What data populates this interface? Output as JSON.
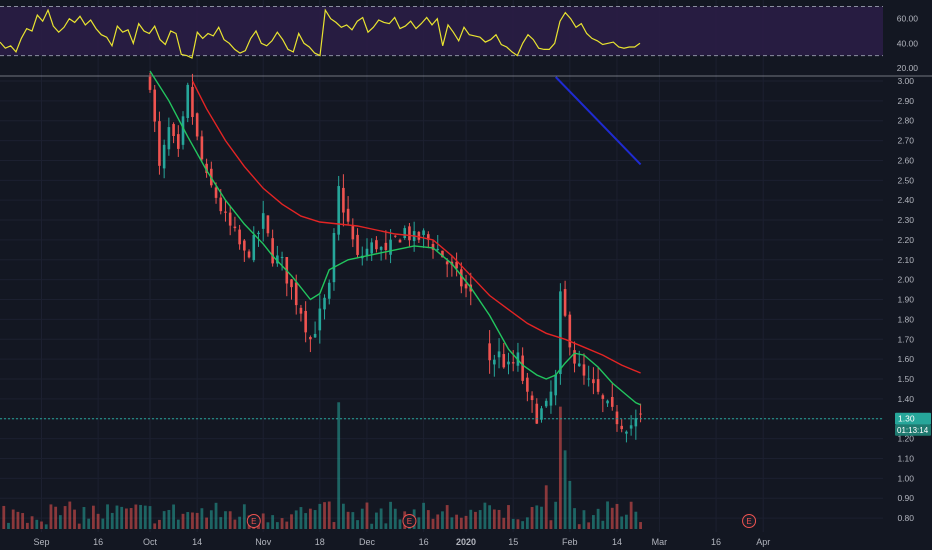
{
  "colors": {
    "background": "#131722",
    "rsi_band": "#2a1d45",
    "rsi_line": "#e8e330",
    "up": "#26a69a",
    "down": "#ef5350",
    "ma_fast": "#22c55e",
    "ma_slow": "#e32424",
    "trend": "#1f2bd1",
    "price_label_bg": "#26a69a",
    "axis_text": "#b2b5be"
  },
  "chart_data": [
    {
      "type": "line",
      "panel": "rsi",
      "ylim": [
        15,
        72
      ],
      "band": [
        30,
        70
      ],
      "tick_labels": [
        "60.00",
        "40.00",
        "20.00"
      ],
      "tick_values": [
        60,
        40,
        20
      ],
      "x_day_range": [
        0,
        140
      ],
      "values": [
        41,
        36,
        38,
        33,
        44,
        52,
        50,
        63,
        58,
        67,
        54,
        49,
        53,
        60,
        57,
        62,
        55,
        59,
        52,
        47,
        45,
        38,
        54,
        49,
        51,
        40,
        56,
        50,
        48,
        54,
        43,
        39,
        50,
        48,
        31,
        30,
        28,
        49,
        44,
        48,
        46,
        53,
        43,
        40,
        35,
        32,
        34,
        44,
        50,
        40,
        38,
        42,
        49,
        43,
        35,
        33,
        48,
        40,
        37,
        32,
        30,
        67,
        60,
        57,
        53,
        55,
        51,
        58,
        61,
        49,
        53,
        59,
        57,
        56,
        61,
        52,
        54,
        58,
        52,
        56,
        61,
        55,
        60,
        38,
        55,
        49,
        42,
        53,
        47,
        46,
        45,
        41,
        43,
        47,
        39,
        37,
        33,
        30,
        40,
        47,
        43,
        36,
        35,
        35,
        40,
        58,
        65,
        60,
        53,
        56,
        48,
        44,
        42,
        39,
        40,
        41,
        37,
        36,
        37,
        37,
        40
      ]
    },
    {
      "type": "candlestick",
      "panel": "price",
      "ylim": [
        0.75,
        3.02
      ],
      "tick_labels": [
        "3.00",
        "2.90",
        "2.80",
        "2.70",
        "2.60",
        "2.50",
        "2.40",
        "2.30",
        "2.20",
        "2.10",
        "2.00",
        "1.90",
        "1.80",
        "1.70",
        "1.60",
        "1.50",
        "1.40",
        "1.30",
        "1.20",
        "1.10",
        "1.00",
        "0.90",
        "0.80"
      ],
      "tick_values": [
        3.0,
        2.9,
        2.8,
        2.7,
        2.6,
        2.5,
        2.4,
        2.3,
        2.2,
        2.1,
        2.0,
        1.9,
        1.8,
        1.7,
        1.6,
        1.5,
        1.4,
        1.3,
        1.2,
        1.1,
        1.0,
        0.9,
        0.8
      ],
      "current_price": "1.30",
      "current_price_value": 1.3,
      "countdown": "01:13:14",
      "close_anchors": [
        [
          0,
          3.0
        ],
        [
          2,
          2.55
        ],
        [
          4,
          2.75
        ],
        [
          6,
          2.62
        ],
        [
          8,
          2.95
        ],
        [
          10,
          2.7
        ],
        [
          12,
          2.5
        ],
        [
          14,
          2.42
        ],
        [
          16,
          2.3
        ],
        [
          18,
          2.22
        ],
        [
          20,
          2.12
        ],
        [
          22,
          2.18
        ],
        [
          24,
          2.3
        ],
        [
          26,
          2.12
        ],
        [
          28,
          2.08
        ],
        [
          30,
          1.95
        ],
        [
          32,
          1.85
        ],
        [
          34,
          1.7
        ],
        [
          36,
          1.82
        ],
        [
          38,
          1.95
        ],
        [
          40,
          2.45
        ],
        [
          42,
          2.28
        ],
        [
          44,
          2.1
        ],
        [
          46,
          2.15
        ],
        [
          48,
          2.18
        ],
        [
          50,
          2.12
        ],
        [
          52,
          2.2
        ],
        [
          54,
          2.25
        ],
        [
          56,
          2.2
        ],
        [
          58,
          2.22
        ],
        [
          60,
          2.18
        ],
        [
          62,
          2.12
        ],
        [
          64,
          2.05
        ],
        [
          66,
          1.98
        ],
        [
          68,
          1.92
        ],
        [
          72,
          1.6
        ],
        [
          74,
          1.62
        ],
        [
          76,
          1.55
        ],
        [
          78,
          1.6
        ],
        [
          80,
          1.4
        ],
        [
          82,
          1.32
        ],
        [
          84,
          1.35
        ],
        [
          86,
          1.5
        ],
        [
          87,
          1.9
        ],
        [
          88,
          1.8
        ],
        [
          90,
          1.6
        ],
        [
          92,
          1.5
        ],
        [
          94,
          1.45
        ],
        [
          96,
          1.38
        ],
        [
          98,
          1.32
        ],
        [
          100,
          1.28
        ],
        [
          102,
          1.27
        ],
        [
          104,
          1.3
        ]
      ],
      "candle_gaps": [
        [
          69,
          71
        ]
      ],
      "ma_fast": [
        [
          0,
          3.05
        ],
        [
          4,
          2.9
        ],
        [
          8,
          2.72
        ],
        [
          12,
          2.55
        ],
        [
          16,
          2.4
        ],
        [
          20,
          2.28
        ],
        [
          24,
          2.18
        ],
        [
          26,
          2.12
        ],
        [
          30,
          2.02
        ],
        [
          34,
          1.9
        ],
        [
          36,
          1.93
        ],
        [
          38,
          2.05
        ],
        [
          42,
          2.1
        ],
        [
          46,
          2.12
        ],
        [
          50,
          2.14
        ],
        [
          54,
          2.16
        ],
        [
          56,
          2.17
        ],
        [
          60,
          2.16
        ],
        [
          64,
          2.08
        ],
        [
          68,
          1.96
        ],
        [
          72,
          1.82
        ],
        [
          76,
          1.65
        ],
        [
          79,
          1.57
        ],
        [
          82,
          1.52
        ],
        [
          84,
          1.5
        ],
        [
          86,
          1.52
        ],
        [
          88,
          1.58
        ],
        [
          90,
          1.63
        ],
        [
          92,
          1.62
        ],
        [
          95,
          1.56
        ],
        [
          98,
          1.48
        ],
        [
          101,
          1.42
        ],
        [
          103,
          1.38
        ],
        [
          104,
          1.37
        ]
      ],
      "ma_slow": [
        [
          9,
          3.0
        ],
        [
          12,
          2.86
        ],
        [
          16,
          2.7
        ],
        [
          20,
          2.57
        ],
        [
          24,
          2.46
        ],
        [
          28,
          2.38
        ],
        [
          32,
          2.32
        ],
        [
          36,
          2.29
        ],
        [
          40,
          2.28
        ],
        [
          44,
          2.27
        ],
        [
          48,
          2.25
        ],
        [
          52,
          2.23
        ],
        [
          56,
          2.22
        ],
        [
          60,
          2.2
        ],
        [
          64,
          2.12
        ],
        [
          68,
          2.02
        ],
        [
          72,
          1.92
        ],
        [
          76,
          1.85
        ],
        [
          80,
          1.78
        ],
        [
          84,
          1.73
        ],
        [
          88,
          1.7
        ],
        [
          92,
          1.66
        ],
        [
          96,
          1.62
        ],
        [
          100,
          1.57
        ],
        [
          104,
          1.53
        ]
      ],
      "trendline": [
        [
          86,
          3.02
        ],
        [
          104,
          2.58
        ]
      ],
      "volume_spikes": [
        [
          40,
          0.58
        ],
        [
          87,
          0.56
        ],
        [
          88,
          0.36
        ],
        [
          84,
          0.2
        ],
        [
          89,
          0.22
        ]
      ]
    }
  ],
  "date_axis": {
    "labels": [
      "Sep",
      "16",
      "Oct",
      "14",
      "Nov",
      "18",
      "Dec",
      "16",
      "2020",
      "15",
      "Feb",
      "14",
      "Mar",
      "16",
      "Apr"
    ],
    "bold": [
      false,
      false,
      false,
      false,
      false,
      false,
      false,
      false,
      true,
      false,
      false,
      false,
      false,
      false,
      false
    ],
    "day_index": [
      -23,
      -11,
      0,
      10,
      24,
      36,
      46,
      58,
      67,
      77,
      89,
      99,
      108,
      120,
      130
    ]
  },
  "earnings": {
    "glyph": "E",
    "day_index": [
      22,
      55,
      127
    ]
  }
}
